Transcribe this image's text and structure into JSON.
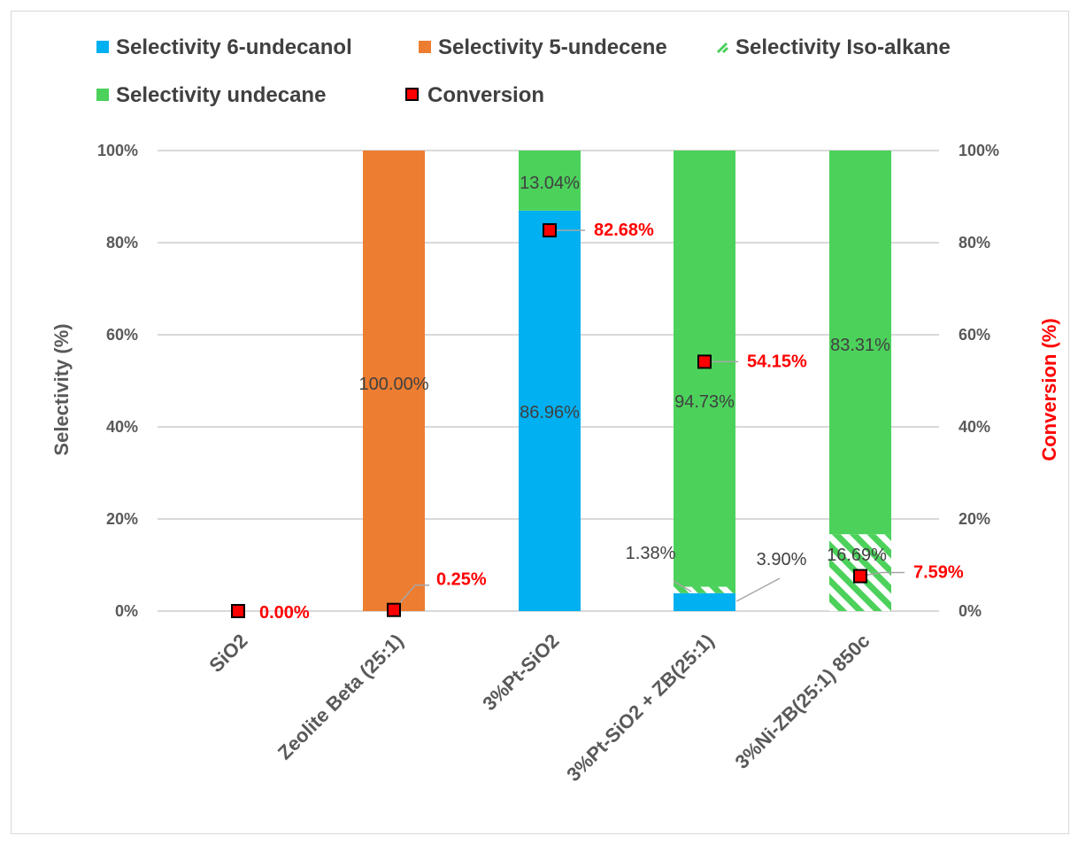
{
  "chart_data": {
    "type": "bar",
    "stacked": true,
    "categories": [
      "SiO2",
      "Zeolite Beta (25:1)",
      "3%Pt-SiO2",
      "3%Pt-SiO2 + ZB(25:1)",
      "3%Ni-ZB(25:1) 850c"
    ],
    "series": [
      {
        "name": "Selectivity 6-undecanol",
        "color": "#00b0f0",
        "pattern": "solid",
        "values": [
          0,
          0,
          86.96,
          3.9,
          0
        ],
        "labels": [
          "",
          "",
          "86.96%",
          "3.90%",
          ""
        ]
      },
      {
        "name": "Selectivity 5-undecene",
        "color": "#ed7d31",
        "pattern": "solid",
        "values": [
          0,
          100,
          0,
          0,
          0
        ],
        "labels": [
          "",
          "100.00%",
          "",
          "",
          ""
        ]
      },
      {
        "name": "Selectivity Iso-alkane",
        "color": "#4cd15b",
        "pattern": "hatch",
        "values": [
          0,
          0,
          0,
          1.38,
          16.69
        ],
        "labels": [
          "",
          "",
          "",
          "1.38%",
          "16.69%"
        ]
      },
      {
        "name": "Selectivity undecane",
        "color": "#4cd15b",
        "pattern": "solid",
        "values": [
          0,
          0,
          13.04,
          94.73,
          83.31
        ],
        "labels": [
          "",
          "",
          "13.04%",
          "94.73%",
          "83.31%"
        ]
      }
    ],
    "conversion": {
      "name": "Conversion",
      "color": "#ff0000",
      "values": [
        0.0,
        0.25,
        82.68,
        54.15,
        7.59
      ],
      "labels": [
        "0.00%",
        "0.25%",
        "82.68%",
        "54.15%",
        "7.59%"
      ]
    },
    "y_left": {
      "title": "Selectivity (%)",
      "range": [
        0,
        100
      ],
      "ticks": [
        "0%",
        "20%",
        "40%",
        "60%",
        "80%",
        "100%"
      ]
    },
    "y_right": {
      "title": "Conversion (%)",
      "range": [
        0,
        100
      ],
      "ticks": [
        "0%",
        "20%",
        "40%",
        "60%",
        "80%",
        "100%"
      ],
      "title_color": "#ff0000"
    },
    "grid": true,
    "legend_position": "top"
  }
}
